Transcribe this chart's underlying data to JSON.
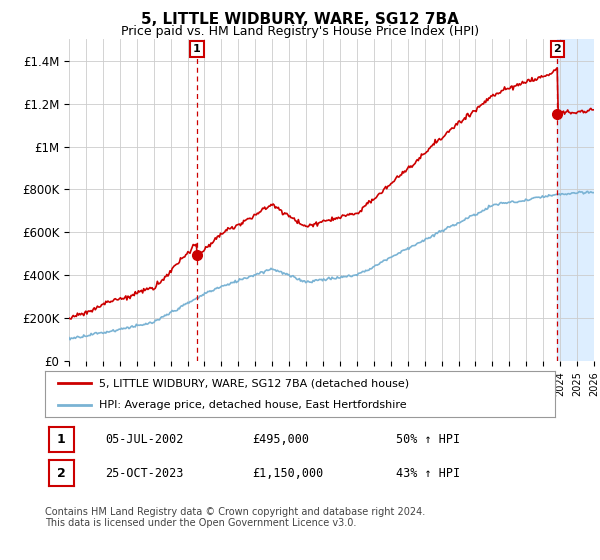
{
  "title": "5, LITTLE WIDBURY, WARE, SG12 7BA",
  "subtitle": "Price paid vs. HM Land Registry's House Price Index (HPI)",
  "title_fontsize": 11,
  "subtitle_fontsize": 9,
  "ylim": [
    0,
    1500000
  ],
  "yticks": [
    0,
    200000,
    400000,
    600000,
    800000,
    1000000,
    1200000,
    1400000
  ],
  "ytick_labels": [
    "£0",
    "£200K",
    "£400K",
    "£600K",
    "£800K",
    "£1M",
    "£1.2M",
    "£1.4M"
  ],
  "background_color": "#ffffff",
  "grid_color": "#cccccc",
  "hpi_color": "#7ab3d4",
  "price_color": "#cc0000",
  "vline_color": "#cc0000",
  "shade_color": "#ddeeff",
  "legend_label1": "5, LITTLE WIDBURY, WARE, SG12 7BA (detached house)",
  "legend_label2": "HPI: Average price, detached house, East Hertfordshire",
  "annotation1_date": "05-JUL-2002",
  "annotation1_price": "£495,000",
  "annotation1_hpi": "50% ↑ HPI",
  "annotation2_date": "25-OCT-2023",
  "annotation2_price": "£1,150,000",
  "annotation2_hpi": "43% ↑ HPI",
  "footer": "Contains HM Land Registry data © Crown copyright and database right 2024.\nThis data is licensed under the Open Government Licence v3.0.",
  "xmin": 1995,
  "xmax": 2026,
  "marker1_x": 2002.55,
  "marker1_y": 495000,
  "marker2_x": 2023.83,
  "marker2_y": 1150000
}
